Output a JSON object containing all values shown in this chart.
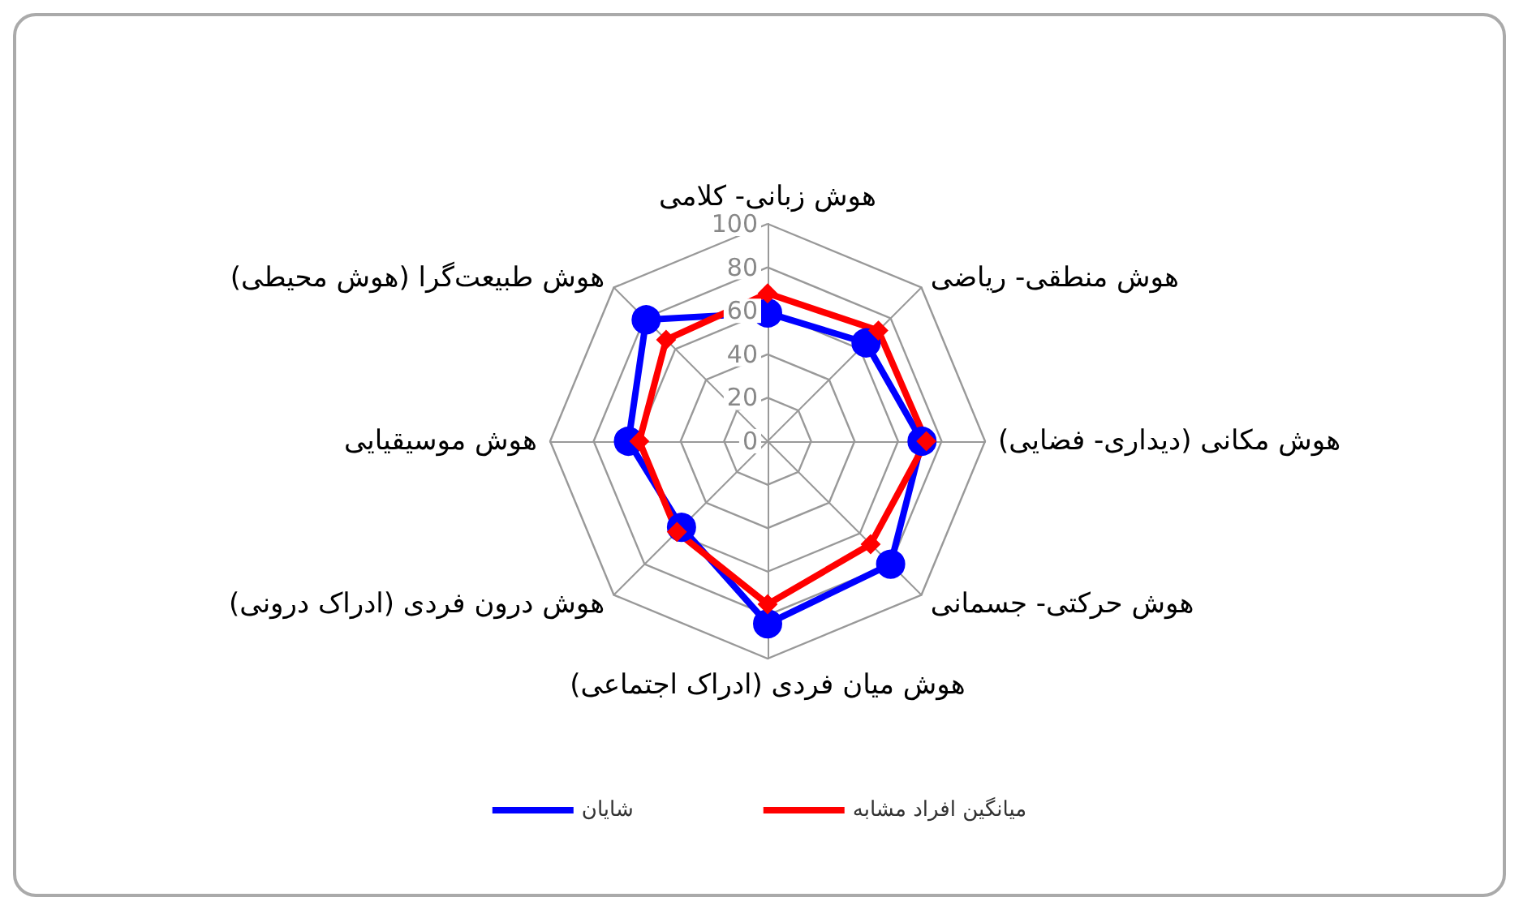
{
  "chart_data": {
    "type": "radar",
    "categories": [
      "هوش زبانی- کلامی",
      "هوش منطقی- ریاضی",
      "هوش مکانی (دیداری- فضایی)",
      "هوش حرکتی- جسمانی",
      "هوش میان فردی (ادراک اجتماعی)",
      "هوش درون فردی (ادراک درونی)",
      "هوش موسیقیایی",
      "هوش طبیعت‌گرا (هوش محیطی)"
    ],
    "series": [
      {
        "name": "شایان",
        "color": "#0000ff",
        "marker": "circle",
        "values": [
          59,
          64,
          71,
          80,
          84,
          56,
          64,
          79
        ]
      },
      {
        "name": "میانگین افراد مشابه",
        "color": "#ff0000",
        "marker": "diamond",
        "values": [
          68,
          72,
          73,
          67,
          75,
          59,
          59,
          66
        ]
      }
    ],
    "ylim": [
      0,
      100
    ],
    "yticks": [
      0,
      20,
      40,
      60,
      80,
      100
    ],
    "grid": true,
    "legend": "bottom"
  }
}
